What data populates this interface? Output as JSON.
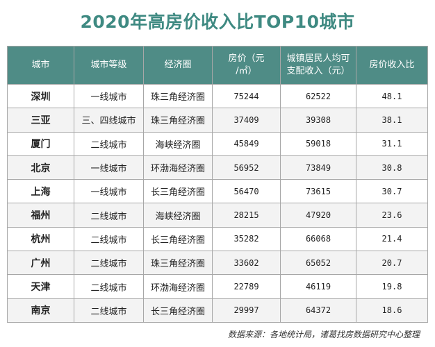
{
  "title": "2020年高房价收入比TOP10城市",
  "source": "数据来源：各地统计局，诸葛找房数据研究中心整理",
  "chart_data": {
    "type": "table",
    "title": "2020年高房价收入比TOP10城市",
    "columns": [
      "城市",
      "城市等级",
      "经济圈",
      "房价（元/㎡）",
      "城镇居民人均可支配收入（元）",
      "房价收入比"
    ],
    "header_lines": [
      [
        "城市"
      ],
      [
        "城市等级"
      ],
      [
        "经济圈"
      ],
      [
        "房价（元",
        "/㎡）"
      ],
      [
        "城镇居民人均可",
        "支配收入（元）"
      ],
      [
        "房价收入比"
      ]
    ],
    "rows": [
      [
        "深圳",
        "一线城市",
        "珠三角经济圈",
        "75244",
        "62522",
        "48.1"
      ],
      [
        "三亚",
        "三、四线城市",
        "珠三角经济圈",
        "37409",
        "39308",
        "38.1"
      ],
      [
        "厦门",
        "二线城市",
        "海峡经济圈",
        "45849",
        "59018",
        "31.1"
      ],
      [
        "北京",
        "一线城市",
        "环渤海经济圈",
        "56952",
        "73849",
        "30.8"
      ],
      [
        "上海",
        "一线城市",
        "长三角经济圈",
        "56470",
        "73615",
        "30.7"
      ],
      [
        "福州",
        "二线城市",
        "海峡经济圈",
        "28215",
        "47920",
        "23.6"
      ],
      [
        "杭州",
        "二线城市",
        "长三角经济圈",
        "35282",
        "66068",
        "21.4"
      ],
      [
        "广州",
        "二线城市",
        "珠三角经济圈",
        "33602",
        "65052",
        "20.7"
      ],
      [
        "天津",
        "二线城市",
        "环渤海经济圈",
        "22789",
        "46119",
        "19.8"
      ],
      [
        "南京",
        "二线城市",
        "长三角经济圈",
        "29997",
        "64372",
        "18.6"
      ]
    ]
  },
  "colors": {
    "title": "#3f8a82",
    "header_bg": "#4f8c86",
    "header_text": "#ffffff",
    "border": "#a7a7a7"
  }
}
